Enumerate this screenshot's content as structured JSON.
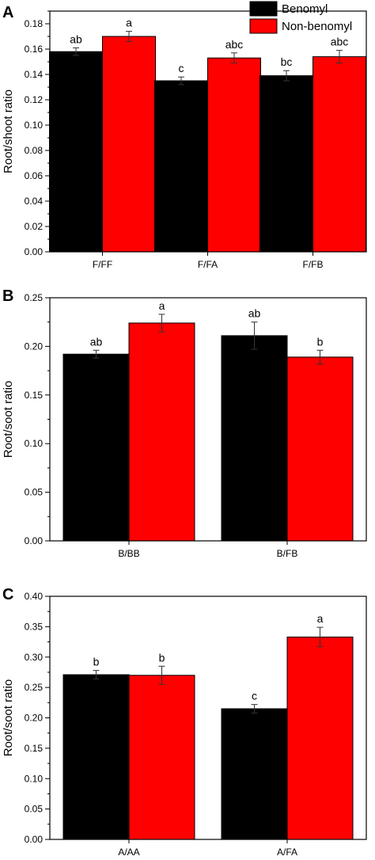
{
  "chart_data": [
    {
      "type": "bar",
      "panel_label": "A",
      "ylabel": "Root/shoot ratio",
      "categories": [
        "F/FF",
        "F/FA",
        "F/FB"
      ],
      "ylim": [
        0,
        0.19
      ],
      "yticks": [
        0.0,
        0.02,
        0.04,
        0.06,
        0.08,
        0.1,
        0.12,
        0.14,
        0.16,
        0.18
      ],
      "series": [
        {
          "name": "Benomyl",
          "color": "#000000",
          "values": [
            0.158,
            0.135,
            0.139
          ],
          "errors": [
            0.003,
            0.003,
            0.004
          ],
          "labels": [
            "ab",
            "c",
            "bc"
          ]
        },
        {
          "name": "Non-benomyl",
          "color": "#ff0000",
          "values": [
            0.17,
            0.153,
            0.154
          ],
          "errors": [
            0.004,
            0.004,
            0.005
          ],
          "labels": [
            "a",
            "abc",
            "abc"
          ]
        }
      ],
      "legend": "top-right"
    },
    {
      "type": "bar",
      "panel_label": "B",
      "ylabel": "Root/soot ratio",
      "categories": [
        "B/BB",
        "B/FB"
      ],
      "ylim": [
        0,
        0.25
      ],
      "yticks": [
        0.0,
        0.05,
        0.1,
        0.15,
        0.2,
        0.25
      ],
      "series": [
        {
          "name": "Benomyl",
          "color": "#000000",
          "values": [
            0.192,
            0.211
          ],
          "errors": [
            0.004,
            0.014
          ],
          "labels": [
            "ab",
            "ab"
          ]
        },
        {
          "name": "Non-benomyl",
          "color": "#ff0000",
          "values": [
            0.224,
            0.189
          ],
          "errors": [
            0.009,
            0.007
          ],
          "labels": [
            "a",
            "b"
          ]
        }
      ]
    },
    {
      "type": "bar",
      "panel_label": "C",
      "ylabel": "Root/soot ratio",
      "categories": [
        "A/AA",
        "A/FA"
      ],
      "ylim": [
        0,
        0.4
      ],
      "yticks": [
        0.0,
        0.05,
        0.1,
        0.15,
        0.2,
        0.25,
        0.3,
        0.35,
        0.4
      ],
      "series": [
        {
          "name": "Benomyl",
          "color": "#000000",
          "values": [
            0.271,
            0.215
          ],
          "errors": [
            0.007,
            0.007
          ],
          "labels": [
            "b",
            "c"
          ]
        },
        {
          "name": "Non-benomyl",
          "color": "#ff0000",
          "values": [
            0.27,
            0.333
          ],
          "errors": [
            0.015,
            0.016
          ],
          "labels": [
            "b",
            "a"
          ]
        }
      ]
    }
  ]
}
